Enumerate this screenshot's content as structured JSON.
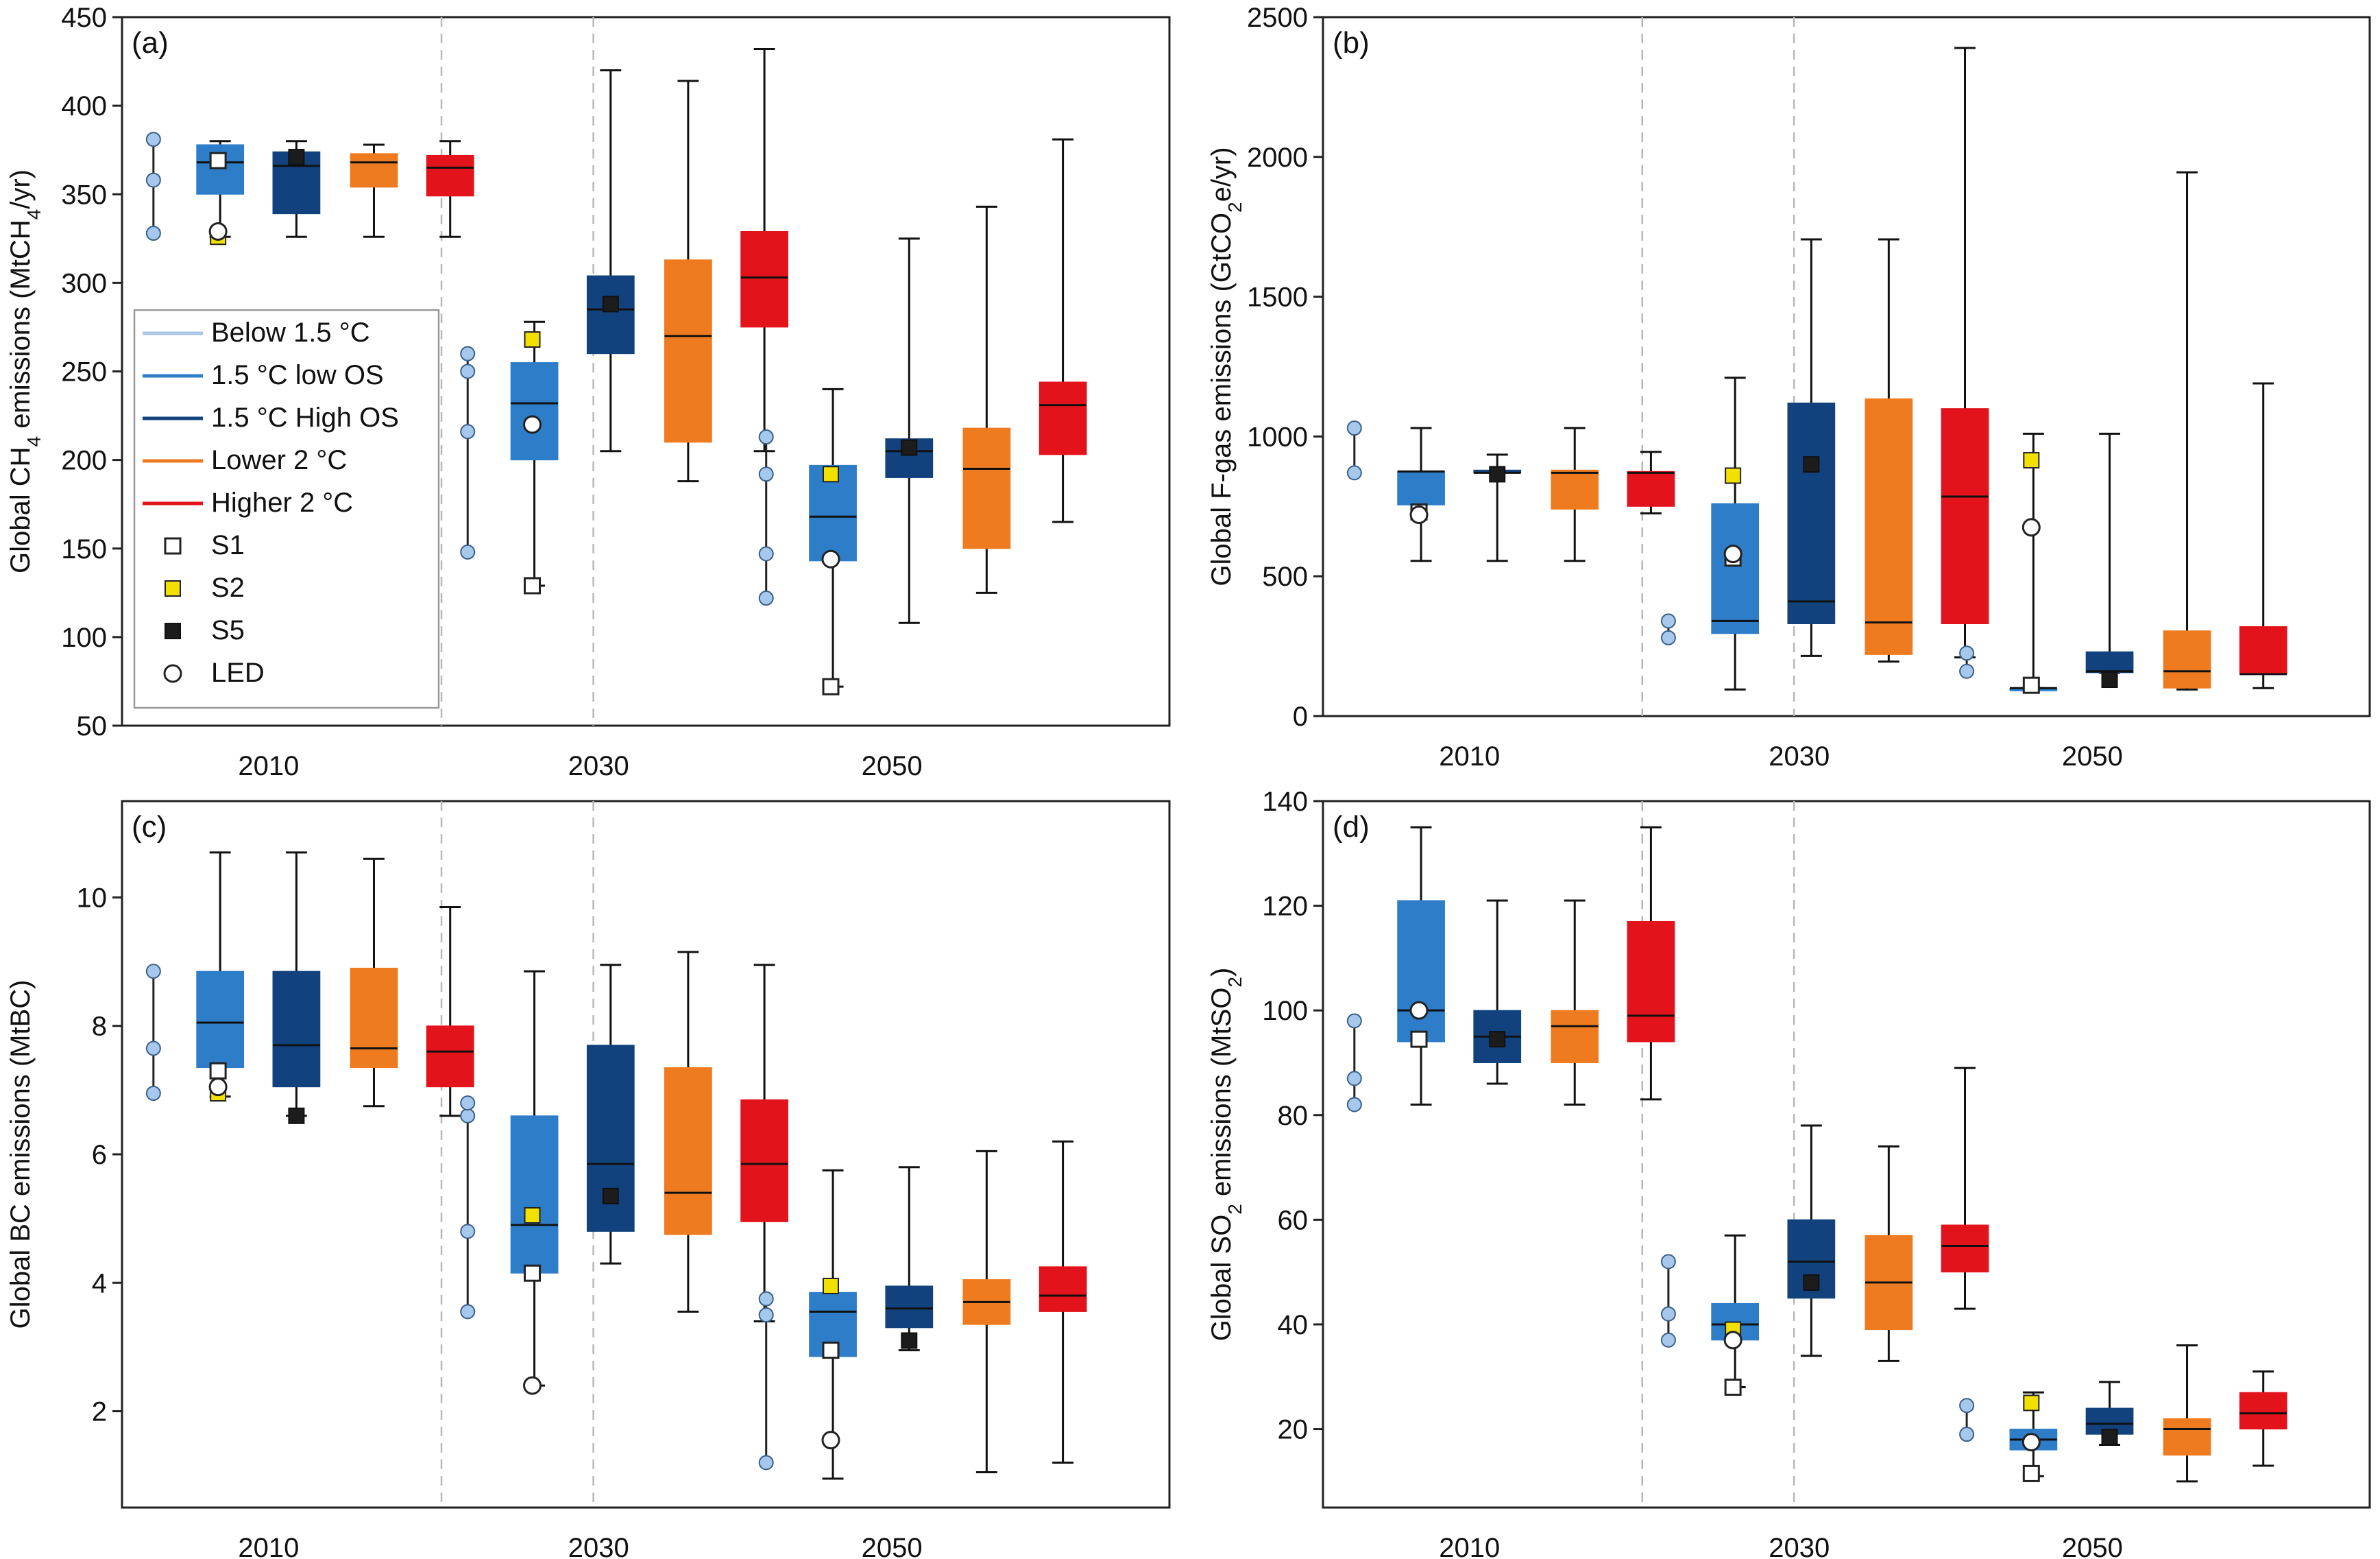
{
  "colors": {
    "below15": "#a8c6e8",
    "low_os": "#2e7dc9",
    "high_os": "#12427e",
    "lower2": "#ef7b21",
    "higher2": "#e3131b",
    "marker_blue": "#a5c8ec",
    "s2": "#f2e100",
    "s5": "#1c1c1c"
  },
  "legend": {
    "entries": [
      {
        "label": "Below 1.5 °C",
        "kind": "line",
        "color": "#a8c6e8"
      },
      {
        "label": "1.5 °C low OS",
        "kind": "line",
        "color": "#2e7dc9"
      },
      {
        "label": "1.5 °C High OS",
        "kind": "line",
        "color": "#12427e"
      },
      {
        "label": "Lower  2 °C",
        "kind": "line",
        "color": "#ef7b21"
      },
      {
        "label": "Higher  2 °C",
        "kind": "line",
        "color": "#e3131b"
      },
      {
        "label": "S1",
        "kind": "marker",
        "marker": "S1"
      },
      {
        "label": "S2",
        "kind": "marker",
        "marker": "S2"
      },
      {
        "label": "S5",
        "kind": "marker",
        "marker": "S5"
      },
      {
        "label": "LED",
        "kind": "marker",
        "marker": "LED"
      }
    ]
  },
  "chart_data": [
    {
      "panel": "(a)",
      "type": "box",
      "ylabel_main": "Global CH",
      "ylabel_sub": "4",
      "ylabel_tail": " emissions (MtCH",
      "ylabel_sub2": "4",
      "ylabel_end": "/yr)",
      "ylim": [
        50,
        450
      ],
      "yticks": [
        50,
        100,
        150,
        200,
        250,
        300,
        350,
        400,
        450
      ],
      "categories": [
        "2010",
        "2030",
        "2050"
      ],
      "legend_placement": "left-middle",
      "groups": [
        {
          "year": "2010",
          "below15": [
            328,
            358,
            381
          ],
          "boxes": [
            {
              "series": "low_os",
              "min": 326,
              "q1": 350,
              "median": 368,
              "q3": 378,
              "max": 380
            },
            {
              "series": "high_os",
              "min": 326,
              "q1": 339,
              "median": 366,
              "q3": 374,
              "max": 380
            },
            {
              "series": "lower2",
              "min": 326,
              "q1": 354,
              "median": 368,
              "q3": 373,
              "max": 378
            },
            {
              "series": "higher2",
              "min": 326,
              "q1": 349,
              "median": 365,
              "q3": 372,
              "max": 380
            }
          ],
          "markers": [
            {
              "type": "S1",
              "box": 0,
              "value": 369
            },
            {
              "type": "S2",
              "box": 0,
              "value": 326
            },
            {
              "type": "LED",
              "box": 0,
              "value": 329
            },
            {
              "type": "S5",
              "box": 1,
              "value": 371
            }
          ]
        },
        {
          "year": "2030",
          "below15": [
            148,
            216,
            250,
            260
          ],
          "boxes": [
            {
              "series": "low_os",
              "min": 129,
              "q1": 200,
              "median": 232,
              "q3": 255,
              "max": 278
            },
            {
              "series": "high_os",
              "min": 205,
              "q1": 260,
              "median": 285,
              "q3": 304,
              "max": 420
            },
            {
              "series": "lower2",
              "min": 188,
              "q1": 210,
              "median": 270,
              "q3": 313,
              "max": 414
            },
            {
              "series": "higher2",
              "min": 205,
              "q1": 275,
              "median": 303,
              "q3": 329,
              "max": 432
            }
          ],
          "markers": [
            {
              "type": "S2",
              "box": 0,
              "value": 268
            },
            {
              "type": "LED",
              "box": 0,
              "value": 220
            },
            {
              "type": "S1",
              "box": 0,
              "value": 129
            },
            {
              "type": "S5",
              "box": 1,
              "value": 288
            }
          ]
        },
        {
          "year": "2050",
          "below15": [
            122,
            147,
            192,
            213
          ],
          "boxes": [
            {
              "series": "low_os",
              "min": 72,
              "q1": 143,
              "median": 168,
              "q3": 197,
              "max": 240
            },
            {
              "series": "high_os",
              "min": 108,
              "q1": 190,
              "median": 205,
              "q3": 212,
              "max": 325
            },
            {
              "series": "lower2",
              "min": 125,
              "q1": 150,
              "median": 195,
              "q3": 218,
              "max": 343
            },
            {
              "series": "higher2",
              "min": 165,
              "q1": 203,
              "median": 231,
              "q3": 244,
              "max": 381
            }
          ],
          "markers": [
            {
              "type": "S2",
              "box": 0,
              "value": 192
            },
            {
              "type": "LED",
              "box": 0,
              "value": 144
            },
            {
              "type": "S1",
              "box": 0,
              "value": 72
            },
            {
              "type": "S5",
              "box": 1,
              "value": 207
            }
          ]
        }
      ]
    },
    {
      "panel": "(b)",
      "type": "box",
      "ylabel_main": "Global F-gas emissions (GtCO",
      "ylabel_sub": "2",
      "ylabel_tail": "e/yr)",
      "ylim": [
        0,
        2500
      ],
      "yticks": [
        0,
        500,
        1000,
        1500,
        2000,
        2500
      ],
      "categories": [
        "2010",
        "2030",
        "2050"
      ],
      "groups": [
        {
          "year": "2010",
          "below15": [
            870,
            1030
          ],
          "boxes": [
            {
              "series": "low_os",
              "min": 555,
              "q1": 755,
              "median": 875,
              "q3": 875,
              "max": 1030
            },
            {
              "series": "high_os",
              "min": 555,
              "q1": 870,
              "median": 870,
              "q3": 880,
              "max": 935
            },
            {
              "series": "lower2",
              "min": 555,
              "q1": 740,
              "median": 870,
              "q3": 880,
              "max": 1030
            },
            {
              "series": "higher2",
              "min": 725,
              "q1": 750,
              "median": 870,
              "q3": 875,
              "max": 945
            }
          ],
          "markers": [
            {
              "type": "S1",
              "box": 0,
              "value": 730
            },
            {
              "type": "LED",
              "box": 0,
              "value": 720
            },
            {
              "type": "S5",
              "box": 1,
              "value": 865
            }
          ]
        },
        {
          "year": "2030",
          "below15": [
            280,
            340
          ],
          "boxes": [
            {
              "series": "low_os",
              "min": 95,
              "q1": 295,
              "median": 340,
              "q3": 760,
              "max": 1210
            },
            {
              "series": "high_os",
              "min": 215,
              "q1": 330,
              "median": 410,
              "q3": 1120,
              "max": 1705
            },
            {
              "series": "lower2",
              "min": 195,
              "q1": 220,
              "median": 335,
              "q3": 1135,
              "max": 1705
            },
            {
              "series": "higher2",
              "min": 210,
              "q1": 330,
              "median": 785,
              "q3": 1100,
              "max": 2390
            }
          ],
          "markers": [
            {
              "type": "S2",
              "box": 0,
              "value": 860
            },
            {
              "type": "S1",
              "box": 0,
              "value": 565
            },
            {
              "type": "LED",
              "box": 0,
              "value": 580
            },
            {
              "type": "S5",
              "box": 1,
              "value": 900
            }
          ]
        },
        {
          "year": "2050",
          "below15": [
            160,
            225
          ],
          "boxes": [
            {
              "series": "low_os",
              "min": 100,
              "q1": 100,
              "median": 100,
              "q3": 100,
              "max": 1010
            },
            {
              "series": "high_os",
              "min": 155,
              "q1": 155,
              "median": 160,
              "q3": 230,
              "max": 1010
            },
            {
              "series": "lower2",
              "min": 95,
              "q1": 100,
              "median": 160,
              "q3": 305,
              "max": 1945
            },
            {
              "series": "higher2",
              "min": 100,
              "q1": 150,
              "median": 150,
              "q3": 320,
              "max": 1190
            }
          ],
          "markers": [
            {
              "type": "S2",
              "box": 0,
              "value": 915
            },
            {
              "type": "LED",
              "box": 0,
              "value": 675
            },
            {
              "type": "S1",
              "box": 0,
              "value": 110
            },
            {
              "type": "S5",
              "box": 1,
              "value": 130
            }
          ]
        }
      ]
    },
    {
      "panel": "(c)",
      "type": "box",
      "ylabel_main": "Global BC emissions (MtBC)",
      "ylim": [
        0.5,
        11.5
      ],
      "yticks": [
        2,
        4,
        6,
        8,
        10
      ],
      "categories": [
        "2010",
        "2030",
        "2050"
      ],
      "groups": [
        {
          "year": "2010",
          "below15": [
            6.95,
            7.65,
            8.85
          ],
          "boxes": [
            {
              "series": "low_os",
              "min": 6.9,
              "q1": 7.35,
              "median": 8.05,
              "q3": 8.85,
              "max": 10.7
            },
            {
              "series": "high_os",
              "min": 6.6,
              "q1": 7.05,
              "median": 7.7,
              "q3": 8.85,
              "max": 10.7
            },
            {
              "series": "lower2",
              "min": 6.75,
              "q1": 7.35,
              "median": 7.65,
              "q3": 8.9,
              "max": 10.6
            },
            {
              "series": "higher2",
              "min": 6.6,
              "q1": 7.05,
              "median": 7.6,
              "q3": 8.0,
              "max": 9.85
            }
          ],
          "markers": [
            {
              "type": "S1",
              "box": 0,
              "value": 7.3
            },
            {
              "type": "S2",
              "box": 0,
              "value": 6.95
            },
            {
              "type": "LED",
              "box": 0,
              "value": 7.05
            },
            {
              "type": "S5",
              "box": 1,
              "value": 6.6
            }
          ]
        },
        {
          "year": "2030",
          "below15": [
            3.55,
            4.8,
            6.6,
            6.8
          ],
          "boxes": [
            {
              "series": "low_os",
              "min": 2.4,
              "q1": 4.15,
              "median": 4.9,
              "q3": 6.6,
              "max": 8.85
            },
            {
              "series": "high_os",
              "min": 4.3,
              "q1": 4.8,
              "median": 5.85,
              "q3": 7.7,
              "max": 8.95
            },
            {
              "series": "lower2",
              "min": 3.55,
              "q1": 4.75,
              "median": 5.4,
              "q3": 7.35,
              "max": 9.15
            },
            {
              "series": "higher2",
              "min": 3.4,
              "q1": 4.95,
              "median": 5.85,
              "q3": 6.85,
              "max": 8.95
            }
          ],
          "markers": [
            {
              "type": "S2",
              "box": 0,
              "value": 5.05
            },
            {
              "type": "S1",
              "box": 0,
              "value": 4.15
            },
            {
              "type": "LED",
              "box": 0,
              "value": 2.4
            },
            {
              "type": "S5",
              "box": 1,
              "value": 5.35
            }
          ]
        },
        {
          "year": "2050",
          "below15": [
            1.2,
            3.5,
            3.75
          ],
          "boxes": [
            {
              "series": "low_os",
              "min": 0.95,
              "q1": 2.85,
              "median": 3.55,
              "q3": 3.85,
              "max": 5.75
            },
            {
              "series": "high_os",
              "min": 2.95,
              "q1": 3.3,
              "median": 3.6,
              "q3": 3.95,
              "max": 5.8
            },
            {
              "series": "lower2",
              "min": 1.05,
              "q1": 3.35,
              "median": 3.7,
              "q3": 4.05,
              "max": 6.05
            },
            {
              "series": "higher2",
              "min": 1.2,
              "q1": 3.55,
              "median": 3.8,
              "q3": 4.25,
              "max": 6.2
            }
          ],
          "markers": [
            {
              "type": "S2",
              "box": 0,
              "value": 3.95
            },
            {
              "type": "S1",
              "box": 0,
              "value": 2.95
            },
            {
              "type": "LED",
              "box": 0,
              "value": 1.55
            },
            {
              "type": "S5",
              "box": 1,
              "value": 3.1
            }
          ]
        }
      ]
    },
    {
      "panel": "(d)",
      "type": "box",
      "ylabel_main": "Global SO",
      "ylabel_sub": "2",
      "ylabel_tail": " emissions (MtSO",
      "ylabel_sub2": "2",
      "ylabel_end": ")",
      "ylim": [
        5,
        140
      ],
      "yticks": [
        20,
        40,
        60,
        80,
        100,
        120,
        140
      ],
      "categories": [
        "2010",
        "2030",
        "2050"
      ],
      "groups": [
        {
          "year": "2010",
          "below15": [
            82,
            87,
            98
          ],
          "boxes": [
            {
              "series": "low_os",
              "min": 82,
              "q1": 94,
              "median": 100,
              "q3": 121,
              "max": 135
            },
            {
              "series": "high_os",
              "min": 86,
              "q1": 90,
              "median": 95,
              "q3": 100,
              "max": 121
            },
            {
              "series": "lower2",
              "min": 82,
              "q1": 90,
              "median": 97,
              "q3": 100,
              "max": 121
            },
            {
              "series": "higher2",
              "min": 83,
              "q1": 94,
              "median": 99,
              "q3": 117,
              "max": 135
            }
          ],
          "markers": [
            {
              "type": "LED",
              "box": 0,
              "value": 100
            },
            {
              "type": "S1",
              "box": 0,
              "value": 94.5
            },
            {
              "type": "S5",
              "box": 1,
              "value": 94.5
            }
          ]
        },
        {
          "year": "2030",
          "below15": [
            37,
            42,
            52
          ],
          "boxes": [
            {
              "series": "low_os",
              "min": 28,
              "q1": 37,
              "median": 40,
              "q3": 44,
              "max": 57
            },
            {
              "series": "high_os",
              "min": 34,
              "q1": 45,
              "median": 52,
              "q3": 60,
              "max": 78
            },
            {
              "series": "lower2",
              "min": 33,
              "q1": 39,
              "median": 48,
              "q3": 57,
              "max": 74
            },
            {
              "series": "higher2",
              "min": 43,
              "q1": 50,
              "median": 55,
              "q3": 59,
              "max": 89
            }
          ],
          "markers": [
            {
              "type": "S2",
              "box": 0,
              "value": 39
            },
            {
              "type": "LED",
              "box": 0,
              "value": 37
            },
            {
              "type": "S1",
              "box": 0,
              "value": 28
            },
            {
              "type": "S5",
              "box": 1,
              "value": 48
            }
          ]
        },
        {
          "year": "2050",
          "below15": [
            19,
            24.5
          ],
          "boxes": [
            {
              "series": "low_os",
              "min": 11,
              "q1": 16,
              "median": 18,
              "q3": 20,
              "max": 27
            },
            {
              "series": "high_os",
              "min": 17,
              "q1": 19,
              "median": 21,
              "q3": 24,
              "max": 29
            },
            {
              "series": "lower2",
              "min": 10,
              "q1": 15,
              "median": 20,
              "q3": 22,
              "max": 36
            },
            {
              "series": "higher2",
              "min": 13,
              "q1": 20,
              "median": 23,
              "q3": 27,
              "max": 31
            }
          ],
          "markers": [
            {
              "type": "S2",
              "box": 0,
              "value": 25
            },
            {
              "type": "LED",
              "box": 0,
              "value": 17.5
            },
            {
              "type": "S1",
              "box": 0,
              "value": 11.5
            },
            {
              "type": "S5",
              "box": 1,
              "value": 18.5
            }
          ]
        }
      ]
    }
  ]
}
